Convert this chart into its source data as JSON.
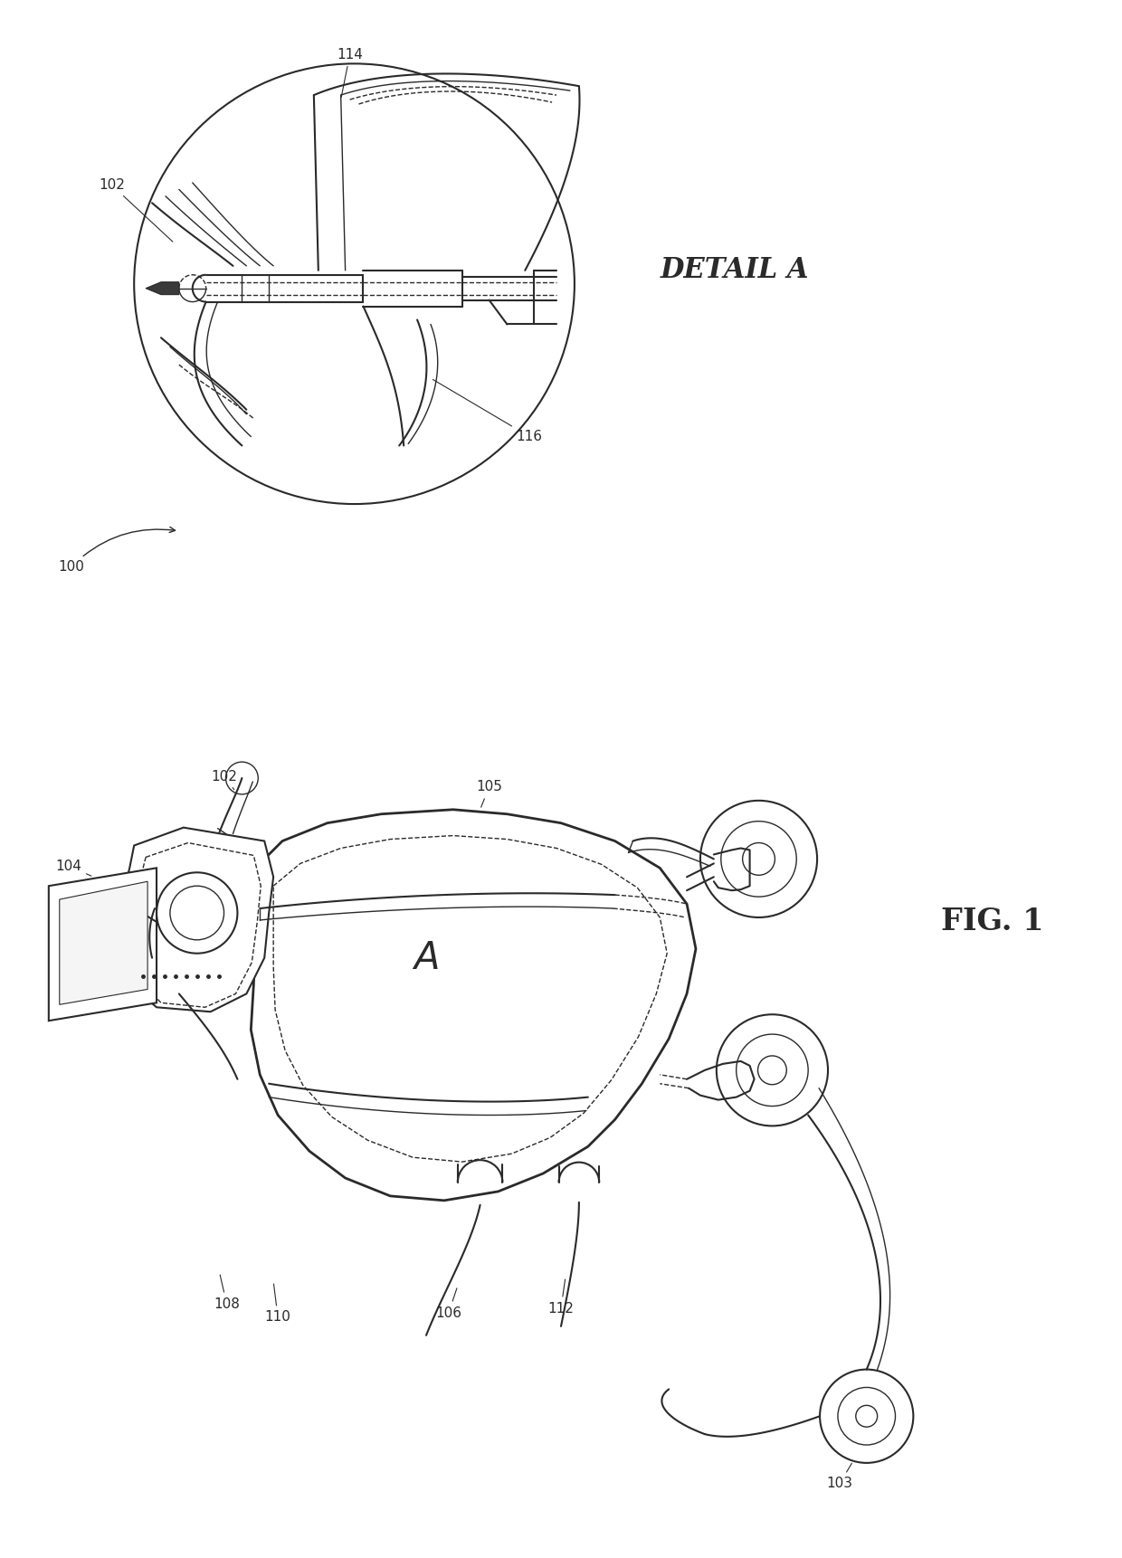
{
  "background_color": "#ffffff",
  "line_color": "#2a2a2a",
  "fig_width": 12.4,
  "fig_height": 17.22,
  "detail_label": "DETAIL A",
  "fig_label": "FIG. 1",
  "label_fontsize": 11,
  "title_fontsize": 20
}
